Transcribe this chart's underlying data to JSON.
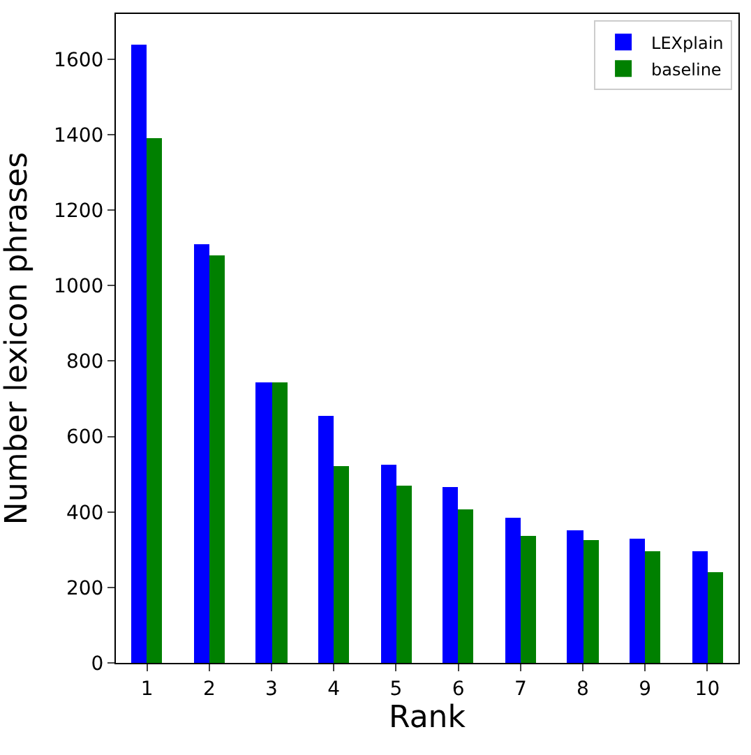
{
  "chart_data": {
    "type": "bar",
    "xlabel": "Rank",
    "ylabel": "Number lexicon phrases",
    "categories": [
      "1",
      "2",
      "3",
      "4",
      "5",
      "6",
      "7",
      "8",
      "9",
      "10"
    ],
    "series": [
      {
        "name": "LEXplain",
        "color": "#0000ff",
        "values": [
          1640,
          1110,
          745,
          655,
          527,
          467,
          385,
          353,
          331,
          296
        ]
      },
      {
        "name": "baseline",
        "color": "#008000",
        "values": [
          1390,
          1080,
          745,
          520,
          470,
          406,
          335,
          324,
          296,
          242
        ]
      }
    ],
    "ylim": [
      0,
      1720
    ],
    "yticks": [
      0,
      200,
      400,
      600,
      800,
      1000,
      1200,
      1400,
      1600
    ],
    "legend": "top right"
  }
}
